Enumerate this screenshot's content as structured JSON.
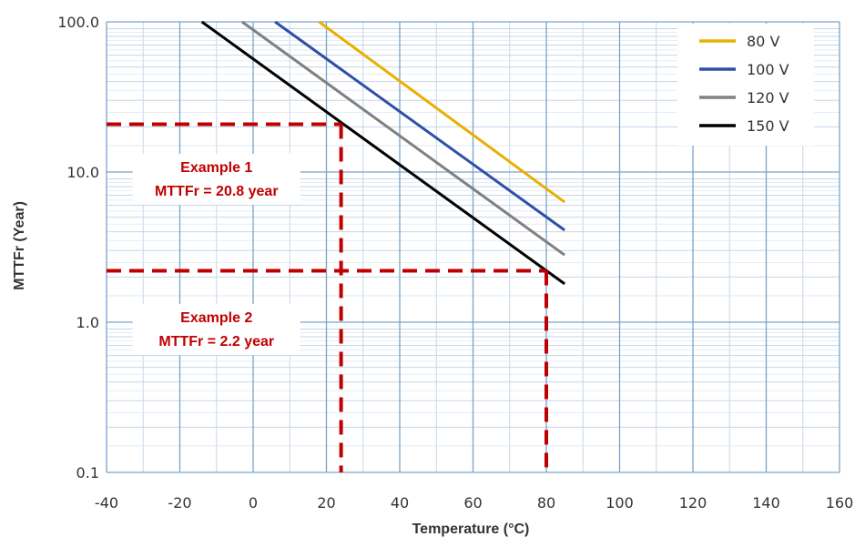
{
  "chart_data": {
    "type": "line",
    "title": "",
    "xlabel": "Temperature (°C)",
    "ylabel": "MTTFr (Year)",
    "xlim": [
      -40,
      160
    ],
    "ylim": [
      0.1,
      100
    ],
    "y_scale": "log",
    "x_ticks": [
      "-40",
      "-20",
      "0",
      "20",
      "40",
      "60",
      "80",
      "100",
      "120",
      "140",
      "160"
    ],
    "y_ticks": [
      "0.1",
      "1.0",
      "10.0",
      "100.0"
    ],
    "grid": true,
    "legend_position": "top-right",
    "series": [
      {
        "name": "80 V",
        "color": "#E8B000",
        "x": [
          18,
          85
        ],
        "y": [
          100,
          6.3
        ]
      },
      {
        "name": "100 V",
        "color": "#2F4FA8",
        "x": [
          6,
          85
        ],
        "y": [
          100,
          4.1
        ]
      },
      {
        "name": "120 V",
        "color": "#808080",
        "x": [
          -3,
          85
        ],
        "y": [
          100,
          2.8
        ]
      },
      {
        "name": "150 V",
        "color": "#000000",
        "x": [
          -14,
          85
        ],
        "y": [
          100,
          1.8
        ]
      }
    ],
    "annotations": [
      {
        "label": "Example 1",
        "value_text": "MTTFr = 20.8 year",
        "x": 24,
        "y": 20.8,
        "color": "#C00000",
        "label_position": {
          "x": -10,
          "y": 10
        }
      },
      {
        "label": "Example 2",
        "value_text": "MTTFr = 2.2 year",
        "x": 80,
        "y": 2.2,
        "color": "#C00000",
        "label_position": {
          "x": -10,
          "y": 1
        }
      }
    ]
  }
}
